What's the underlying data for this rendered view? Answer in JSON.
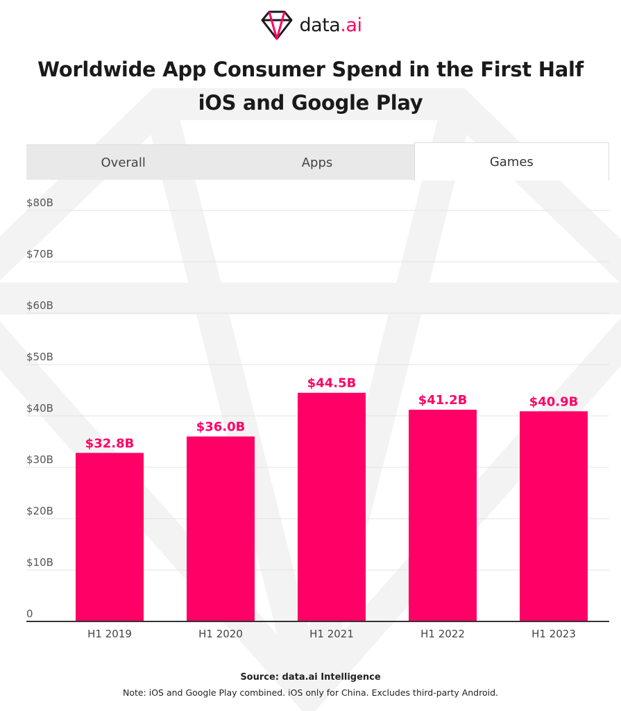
{
  "brand": {
    "logo_text_main": "data",
    "logo_text_accent": ".ai",
    "accent_color": "#ff0066"
  },
  "title": {
    "line1": "Worldwide App Consumer Spend in the First Half",
    "line2": "iOS and Google Play"
  },
  "tabs": [
    {
      "label": "Overall",
      "active": false
    },
    {
      "label": "Apps",
      "active": false
    },
    {
      "label": "Games",
      "active": true
    }
  ],
  "chart_data": {
    "type": "bar",
    "categories": [
      "H1 2019",
      "H1 2020",
      "H1 2021",
      "H1 2022",
      "H1 2023"
    ],
    "values": [
      32.8,
      36.0,
      44.5,
      41.2,
      40.9
    ],
    "data_labels": [
      "$32.8B",
      "$36.0B",
      "$44.5B",
      "$41.2B",
      "$40.9B"
    ],
    "y_ticks": [
      0,
      10,
      20,
      30,
      40,
      50,
      60,
      70,
      80
    ],
    "y_tick_labels": [
      "0",
      "$10B",
      "$20B",
      "$30B",
      "$40B",
      "$50B",
      "$60B",
      "$70B",
      "$80B"
    ],
    "ylim": [
      0,
      80
    ],
    "grid": true,
    "bar_color": "#ff0066",
    "label_color": "#ff0066"
  },
  "footer": {
    "source": "Source: data.ai Intelligence",
    "note": "Note: iOS and Google Play combined. iOS only for China. Excludes third-party Android."
  }
}
